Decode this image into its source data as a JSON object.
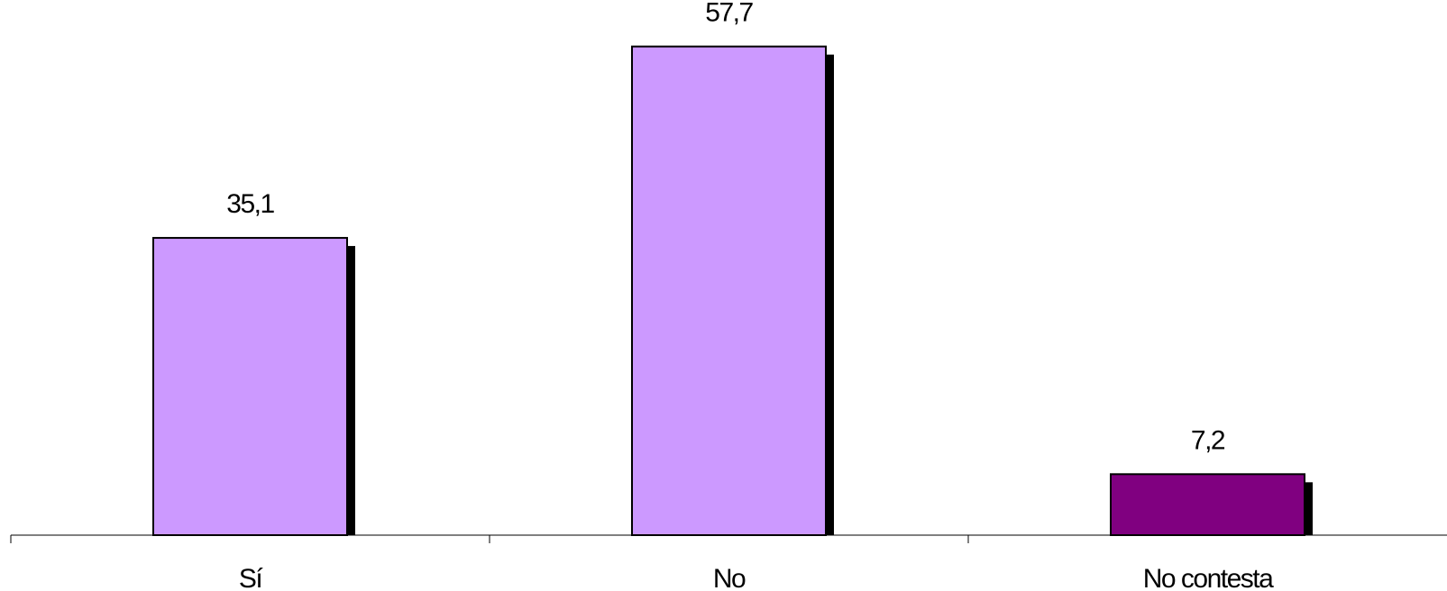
{
  "chart_data": {
    "type": "bar",
    "categories": [
      "Sí",
      "No",
      "No contesta"
    ],
    "values": [
      35.1,
      57.7,
      7.2
    ],
    "value_labels": [
      "35,1",
      "57,7",
      "7,2"
    ],
    "colors": [
      "#cc99ff",
      "#cc99ff",
      "#800080"
    ],
    "shadow_color": "#000000",
    "title": "",
    "xlabel": "",
    "ylabel": "",
    "ylim": [
      0,
      60
    ],
    "grid": false,
    "legend": "none"
  }
}
